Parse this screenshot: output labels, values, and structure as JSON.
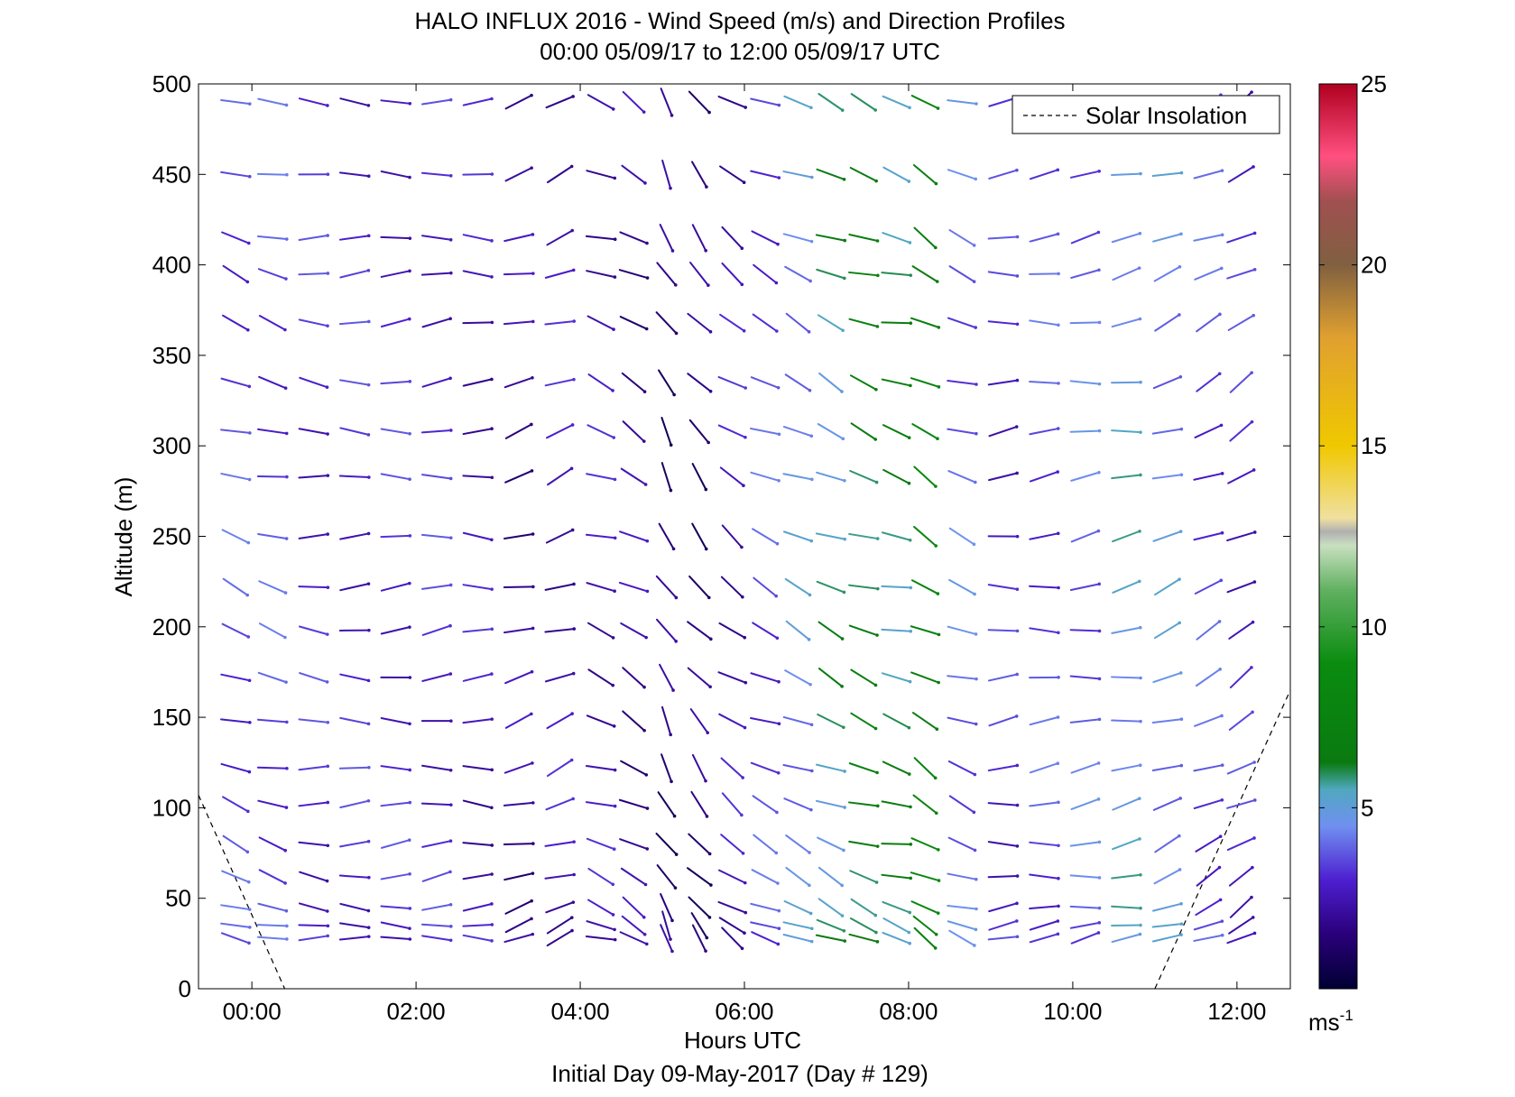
{
  "chart_data": {
    "type": "wind-barb-profile",
    "title": "HALO INFLUX 2016 - Wind Speed (m/s) and Direction Profiles",
    "subtitle": "00:00 05/09/17 to 12:00 05/09/17  UTC",
    "xlabel": "Hours UTC",
    "footer": "Initial Day 09-May-2017 (Day # 129)",
    "ylabel": "Altitude (m)",
    "xlim": [
      -0.65,
      12.65
    ],
    "ylim": [
      0,
      500
    ],
    "x_ticks": [
      0,
      2,
      4,
      6,
      8,
      10,
      12
    ],
    "x_tick_labels": [
      "00:00",
      "02:00",
      "04:00",
      "06:00",
      "08:00",
      "10:00",
      "12:00"
    ],
    "y_ticks": [
      0,
      50,
      100,
      150,
      200,
      250,
      300,
      350,
      400,
      450,
      500
    ],
    "y_tick_labels": [
      "0",
      "50",
      "100",
      "150",
      "200",
      "250",
      "300",
      "350",
      "400",
      "450",
      "500"
    ],
    "legend": {
      "label": "Solar Insolation",
      "placement": "top-right",
      "style": "dashed"
    },
    "solar_insolation": [
      {
        "x": [
          -0.65,
          0.4
        ],
        "y": [
          107,
          0
        ]
      },
      {
        "x": [
          11.0,
          12.65
        ],
        "y": [
          0,
          165
        ]
      }
    ],
    "colorbar": {
      "min": 0,
      "max": 25,
      "ticks": [
        5,
        10,
        15,
        20,
        25
      ],
      "tick_labels": [
        "5",
        "10",
        "15",
        "20",
        "25"
      ],
      "unit": "ms",
      "unit_exp": "-1"
    },
    "altitudes": [
      28,
      35,
      45,
      62,
      80,
      102,
      122,
      148,
      172,
      198,
      222,
      250,
      283,
      308,
      335,
      368,
      395,
      415,
      450,
      490
    ],
    "columns": [
      {
        "x": -0.2,
        "speed": 3.5,
        "dir": 250
      },
      {
        "x": 0.25,
        "speed": 3.5,
        "dir": 255
      },
      {
        "x": 0.75,
        "speed": 3.0,
        "dir": 265
      },
      {
        "x": 1.25,
        "speed": 3.0,
        "dir": 270
      },
      {
        "x": 1.75,
        "speed": 3.0,
        "dir": 272
      },
      {
        "x": 2.25,
        "speed": 3.0,
        "dir": 275
      },
      {
        "x": 2.75,
        "speed": 2.5,
        "dir": 270
      },
      {
        "x": 3.25,
        "speed": 2.0,
        "dir": 285
      },
      {
        "x": 3.75,
        "speed": 2.5,
        "dir": 290
      },
      {
        "x": 4.25,
        "speed": 2.5,
        "dir": 250
      },
      {
        "x": 4.65,
        "speed": 2.0,
        "dir": 240
      },
      {
        "x": 5.05,
        "speed": 1.5,
        "dir": 210
      },
      {
        "x": 5.45,
        "speed": 1.5,
        "dir": 220
      },
      {
        "x": 5.85,
        "speed": 2.5,
        "dir": 235
      },
      {
        "x": 6.25,
        "speed": 3.5,
        "dir": 245
      },
      {
        "x": 6.65,
        "speed": 4.5,
        "dir": 245
      },
      {
        "x": 7.05,
        "speed": 5.5,
        "dir": 245
      },
      {
        "x": 7.45,
        "speed": 6.5,
        "dir": 250
      },
      {
        "x": 7.85,
        "speed": 6.0,
        "dir": 255
      },
      {
        "x": 8.2,
        "speed": 7.5,
        "dir": 240
      },
      {
        "x": 8.65,
        "speed": 4.0,
        "dir": 250
      },
      {
        "x": 9.15,
        "speed": 3.0,
        "dir": 275
      },
      {
        "x": 9.65,
        "speed": 3.5,
        "dir": 275
      },
      {
        "x": 10.15,
        "speed": 4.0,
        "dir": 278
      },
      {
        "x": 10.65,
        "speed": 5.0,
        "dir": 280
      },
      {
        "x": 11.15,
        "speed": 4.5,
        "dir": 290
      },
      {
        "x": 11.65,
        "speed": 3.5,
        "dir": 295
      },
      {
        "x": 12.05,
        "speed": 3.0,
        "dir": 300
      }
    ]
  }
}
